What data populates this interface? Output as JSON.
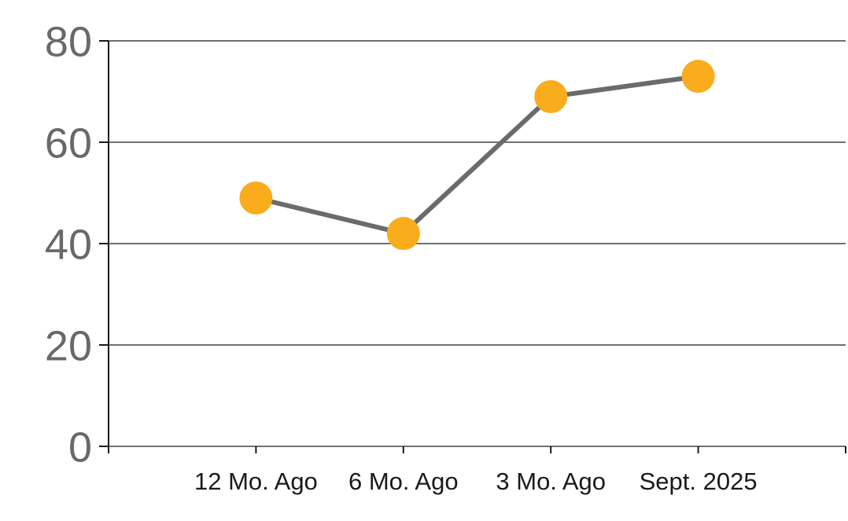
{
  "chart_data": {
    "type": "line",
    "categories": [
      "12 Mo. Ago",
      "6 Mo. Ago",
      "3 Mo. Ago",
      "Sept. 2025"
    ],
    "values": [
      49,
      42,
      69,
      73
    ],
    "title": "",
    "xlabel": "",
    "ylabel": "",
    "ylim": [
      0,
      80
    ],
    "yticks": [
      0,
      20,
      40,
      60,
      80
    ],
    "grid": true,
    "legend": "none",
    "colors": {
      "marker": "#F9AC1C",
      "line": "#6B6B6B",
      "grid": "#1A1A1A",
      "axis": "#1A1A1A",
      "y_tick_label": "#696969",
      "x_tick_label": "#1A1A1A",
      "background": "#FFFFFF"
    }
  }
}
